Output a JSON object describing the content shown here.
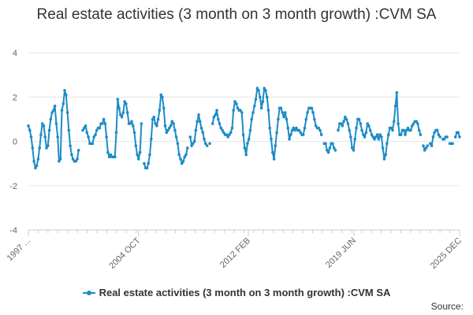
{
  "colors": {
    "series": "#1d8bc6",
    "grid": "#e6e6e6",
    "text": "#333333",
    "axis": "#666666"
  },
  "chart_data": {
    "type": "line",
    "title": "Real estate activities (3 month on 3 month growth) :CVM SA",
    "xlabel": "",
    "ylabel": "",
    "ylim": [
      -4,
      4
    ],
    "yticks": [
      4,
      2,
      0,
      -2,
      -4
    ],
    "xticks": [
      "1997 ...",
      "2004 OCT",
      "2012 FEB",
      "2019 JUN",
      "2025 DEC"
    ],
    "x_range": [
      "1997 JAN",
      "2025 DEC"
    ],
    "series": [
      {
        "name": "Real estate activities (3 month on 3 month growth) :CVM SA",
        "values": [
          0.7,
          0.5,
          0.2,
          -0.3,
          -0.9,
          -1.2,
          -1.1,
          -0.8,
          -0.3,
          0.3,
          0.8,
          0.7,
          0.2,
          -0.3,
          -0.2,
          0.5,
          1.0,
          1.3,
          1.4,
          1.6,
          0.8,
          0.2,
          -0.9,
          -0.8,
          1.4,
          1.7,
          2.3,
          2.1,
          1.3,
          0.5,
          -0.2,
          -0.6,
          -0.8,
          -0.9,
          -0.9,
          -0.8,
          -0.4,
          null,
          null,
          0.5,
          0.6,
          0.7,
          0.4,
          0.2,
          -0.1,
          -0.1,
          -0.1,
          0.2,
          0.3,
          0.5,
          0.6,
          0.6,
          0.8,
          0.8,
          1.0,
          0.8,
          0.2,
          -0.5,
          -0.7,
          -0.6,
          -0.7,
          -0.7,
          -0.7,
          0.4,
          1.9,
          1.5,
          1.2,
          1.1,
          1.3,
          1.8,
          1.7,
          1.3,
          0.8,
          0.8,
          0.9,
          0.7,
          0.4,
          -0.2,
          -0.6,
          -0.8,
          -0.5,
          0.8,
          null,
          -1.0,
          -1.2,
          -1.2,
          -1.0,
          -0.6,
          0.1,
          1.0,
          1.1,
          0.8,
          0.7,
          1.0,
          1.4,
          2.1,
          2.0,
          1.5,
          0.7,
          0.4,
          0.5,
          0.6,
          0.7,
          0.9,
          0.8,
          0.5,
          0.2,
          -0.1,
          -0.6,
          -0.8,
          -1.0,
          -0.9,
          -0.7,
          -0.6,
          -0.3,
          null,
          0.2,
          -0.2,
          -0.1,
          0.0,
          0.5,
          0.9,
          1.2,
          0.9,
          0.6,
          0.4,
          0.1,
          -0.1,
          -0.2,
          null,
          -0.1,
          null,
          0.8,
          1.1,
          1.2,
          1.4,
          1.0,
          0.8,
          0.6,
          0.5,
          0.4,
          0.3,
          0.3,
          0.2,
          0.3,
          0.4,
          0.6,
          1.4,
          1.8,
          1.7,
          1.5,
          1.4,
          1.4,
          1.3,
          0.3,
          -0.3,
          -0.6,
          -0.1,
          0.1,
          0.5,
          1.0,
          1.3,
          1.6,
          1.9,
          2.4,
          2.3,
          2.0,
          1.5,
          1.8,
          2.4,
          2.3,
          2.0,
          1.4,
          0.6,
          0.1,
          -0.5,
          -0.8,
          -0.2,
          0.4,
          1.0,
          1.5,
          1.5,
          1.3,
          1.1,
          1.3,
          1.0,
          0.6,
          0.1,
          0.3,
          0.5,
          0.6,
          0.5,
          0.6,
          0.5,
          0.5,
          0.4,
          0.3,
          0.3,
          0.6,
          1.0,
          1.3,
          1.5,
          1.5,
          1.5,
          1.3,
          1.0,
          0.7,
          0.6,
          0.6,
          0.5,
          0.3,
          null,
          -0.1,
          -0.1,
          -0.4,
          -0.5,
          -0.3,
          -0.1,
          -0.1,
          -0.3,
          -0.4,
          null,
          0.5,
          0.8,
          0.8,
          0.7,
          0.9,
          1.1,
          1.0,
          0.8,
          0.5,
          0.2,
          -0.3,
          -0.4,
          0.1,
          0.6,
          1.0,
          1.0,
          0.8,
          0.5,
          0.3,
          0.2,
          0.4,
          0.8,
          0.7,
          0.5,
          0.3,
          0.2,
          0.1,
          0.2,
          0.3,
          0.1,
          0.3,
          0.2,
          -0.3,
          -0.8,
          -0.6,
          -0.1,
          0.3,
          0.6,
          0.6,
          0.5,
          0.9,
          1.6,
          2.2,
          0.8,
          0.3,
          0.3,
          0.5,
          0.5,
          0.3,
          0.5,
          0.6,
          0.5,
          0.5,
          0.7,
          0.8,
          0.9,
          0.9,
          0.8,
          0.5,
          0.3,
          null,
          -0.2,
          -0.4,
          -0.3,
          -0.2,
          null,
          -0.1,
          -0.2,
          0.2,
          0.4,
          0.5,
          0.5,
          0.3,
          0.2,
          null,
          0.1,
          0.1,
          0.2,
          0.2,
          null,
          -0.1,
          -0.1,
          -0.1,
          null,
          0.2,
          0.4,
          0.4,
          0.2
        ]
      }
    ],
    "legend_position": "bottom-center",
    "source_label": "Source:"
  }
}
